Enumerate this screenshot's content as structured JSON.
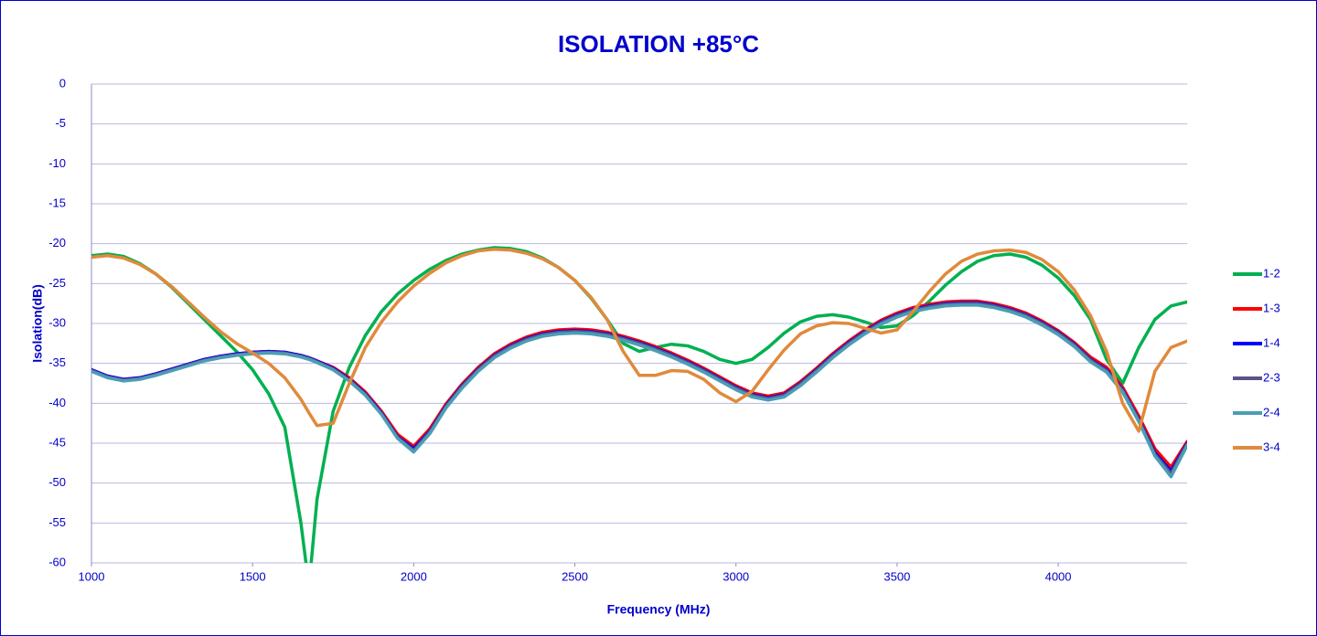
{
  "chart_data": {
    "type": "line",
    "title": "ISOLATION +85°C",
    "x_label": "Frequency (MHz)",
    "y_label": "Isolation(dB)",
    "x": [
      1000,
      1050,
      1100,
      1150,
      1200,
      1250,
      1300,
      1350,
      1400,
      1450,
      1500,
      1550,
      1600,
      1650,
      1675,
      1700,
      1750,
      1800,
      1850,
      1900,
      1950,
      2000,
      2050,
      2100,
      2150,
      2200,
      2250,
      2300,
      2350,
      2400,
      2450,
      2500,
      2550,
      2600,
      2650,
      2700,
      2750,
      2800,
      2850,
      2900,
      2950,
      3000,
      3050,
      3100,
      3150,
      3200,
      3250,
      3300,
      3350,
      3400,
      3450,
      3500,
      3550,
      3600,
      3650,
      3700,
      3750,
      3800,
      3850,
      3900,
      3950,
      4000,
      4050,
      4100,
      4150,
      4200,
      4250,
      4300,
      4350,
      4400
    ],
    "xlim": [
      1000,
      4400
    ],
    "xticks": [
      1000,
      1500,
      2000,
      2500,
      3000,
      3500,
      4000
    ],
    "ylim": [
      -60,
      0
    ],
    "yticks": [
      0,
      -5,
      -10,
      -15,
      -20,
      -25,
      -30,
      -35,
      -40,
      -45,
      -50,
      -55,
      -60
    ],
    "grid": true,
    "legend": "right",
    "series": [
      {
        "name": "1-2",
        "color": "#00b050",
        "values": [
          -21.5,
          -21.3,
          -21.6,
          -22.5,
          -23.8,
          -25.5,
          -27.5,
          -29.5,
          -31.5,
          -33.5,
          -35.8,
          -38.8,
          -43,
          -55,
          -63,
          -52,
          -41,
          -35.5,
          -31.5,
          -28.5,
          -26.3,
          -24.6,
          -23.2,
          -22.1,
          -21.3,
          -20.8,
          -20.5,
          -20.6,
          -21.0,
          -21.8,
          -23,
          -24.6,
          -26.8,
          -29.5,
          -32.5,
          -33.5,
          -33,
          -32.6,
          -32.8,
          -33.5,
          -34.5,
          -35,
          -34.5,
          -33,
          -31.2,
          -29.8,
          -29.1,
          -28.9,
          -29.2,
          -29.8,
          -30.5,
          -30.3,
          -29,
          -27.2,
          -25.2,
          -23.5,
          -22.2,
          -21.5,
          -21.3,
          -21.7,
          -22.7,
          -24.3,
          -26.5,
          -29.5,
          -34.5,
          -37.5,
          -33,
          -29.5,
          -27.8,
          -27.3
        ]
      },
      {
        "name": "1-3",
        "color": "#ff0000",
        "values": [
          -35.8,
          -36.6,
          -37,
          -36.8,
          -36.3,
          -35.7,
          -35.1,
          -34.5,
          -34.1,
          -33.8,
          -33.6,
          -33.5,
          -33.6,
          -34,
          -34.3,
          -34.7,
          -35.5,
          -36.8,
          -38.6,
          -41,
          -43.9,
          -45.4,
          -43.2,
          -40.1,
          -37.6,
          -35.5,
          -33.8,
          -32.6,
          -31.7,
          -31.1,
          -30.8,
          -30.7,
          -30.8,
          -31.1,
          -31.6,
          -32.2,
          -32.9,
          -33.7,
          -34.6,
          -35.6,
          -36.7,
          -37.8,
          -38.7,
          -39.1,
          -38.7,
          -37.3,
          -35.6,
          -33.8,
          -32.2,
          -30.8,
          -29.6,
          -28.7,
          -28.0,
          -27.6,
          -27.3,
          -27.2,
          -27.2,
          -27.5,
          -28.0,
          -28.7,
          -29.7,
          -30.9,
          -32.4,
          -34.2,
          -35.5,
          -38,
          -41.6,
          -45.7,
          -48,
          -44.8
        ]
      },
      {
        "name": "1-4",
        "color": "#0000ff",
        "values": [
          -35.8,
          -36.6,
          -37,
          -36.8,
          -36.3,
          -35.7,
          -35.1,
          -34.5,
          -34.1,
          -33.8,
          -33.6,
          -33.5,
          -33.6,
          -34,
          -34.3,
          -34.7,
          -35.6,
          -37,
          -38.8,
          -41.2,
          -44.2,
          -45.7,
          -43.5,
          -40.3,
          -37.8,
          -35.7,
          -34,
          -32.8,
          -31.9,
          -31.3,
          -31,
          -30.9,
          -31,
          -31.3,
          -31.8,
          -32.4,
          -33.1,
          -33.9,
          -34.8,
          -35.8,
          -36.9,
          -38,
          -38.9,
          -39.3,
          -38.9,
          -37.5,
          -35.8,
          -34,
          -32.4,
          -31,
          -29.8,
          -28.9,
          -28.2,
          -27.8,
          -27.5,
          -27.4,
          -27.4,
          -27.7,
          -28.2,
          -28.9,
          -29.9,
          -31.1,
          -32.6,
          -34.5,
          -35.8,
          -38.3,
          -42,
          -46.2,
          -48.5,
          -45
        ]
      },
      {
        "name": "2-3",
        "color": "#5b5388",
        "values": [
          -35.9,
          -36.7,
          -37.1,
          -36.9,
          -36.4,
          -35.8,
          -35.2,
          -34.6,
          -34.2,
          -33.9,
          -33.7,
          -33.6,
          -33.7,
          -34.1,
          -34.4,
          -34.8,
          -35.7,
          -37.1,
          -38.9,
          -41.3,
          -44.3,
          -45.9,
          -43.6,
          -40.4,
          -37.9,
          -35.8,
          -34.1,
          -32.9,
          -32.0,
          -31.4,
          -31.1,
          -31.0,
          -31.1,
          -31.4,
          -31.9,
          -32.5,
          -33.2,
          -34.0,
          -34.9,
          -35.9,
          -37.0,
          -38.1,
          -39.0,
          -39.4,
          -39.0,
          -37.6,
          -35.9,
          -34.1,
          -32.5,
          -31.1,
          -29.9,
          -29.0,
          -28.3,
          -27.9,
          -27.6,
          -27.5,
          -27.5,
          -27.8,
          -28.3,
          -29.0,
          -30.0,
          -31.2,
          -32.7,
          -34.6,
          -35.9,
          -38.4,
          -42.1,
          -46.4,
          -48.8,
          -45.1
        ]
      },
      {
        "name": "2-4",
        "color": "#4a9eb5",
        "values": [
          -36,
          -36.8,
          -37.2,
          -37,
          -36.5,
          -35.9,
          -35.3,
          -34.7,
          -34.3,
          -34,
          -33.8,
          -33.7,
          -33.8,
          -34.2,
          -34.5,
          -34.9,
          -35.8,
          -37.2,
          -39,
          -41.4,
          -44.4,
          -46.1,
          -43.8,
          -40.6,
          -38.1,
          -36,
          -34.3,
          -33.1,
          -32.2,
          -31.6,
          -31.3,
          -31.2,
          -31.3,
          -31.6,
          -32.1,
          -32.7,
          -33.4,
          -34.2,
          -35.1,
          -36.1,
          -37.2,
          -38.3,
          -39.2,
          -39.6,
          -39.2,
          -37.8,
          -36.1,
          -34.3,
          -32.7,
          -31.3,
          -30.1,
          -29.2,
          -28.5,
          -28.1,
          -27.8,
          -27.7,
          -27.7,
          -28.0,
          -28.5,
          -29.2,
          -30.2,
          -31.4,
          -32.9,
          -34.8,
          -36.1,
          -38.6,
          -42.3,
          -46.6,
          -49.2,
          -45.3
        ]
      },
      {
        "name": "3-4",
        "color": "#e08a3c",
        "values": [
          -21.7,
          -21.5,
          -21.8,
          -22.6,
          -23.8,
          -25.4,
          -27.3,
          -29.2,
          -31,
          -32.5,
          -33.7,
          -35,
          -36.8,
          -39.5,
          -41.2,
          -42.8,
          -42.5,
          -37.5,
          -33,
          -29.8,
          -27.3,
          -25.3,
          -23.7,
          -22.4,
          -21.5,
          -20.9,
          -20.7,
          -20.8,
          -21.2,
          -21.9,
          -23,
          -24.6,
          -26.7,
          -29.5,
          -33.5,
          -36.5,
          -36.5,
          -35.9,
          -36,
          -37,
          -38.7,
          -39.8,
          -38.5,
          -35.8,
          -33.3,
          -31.3,
          -30.3,
          -29.9,
          -30,
          -30.6,
          -31.2,
          -30.8,
          -28.5,
          -26,
          -23.8,
          -22.2,
          -21.3,
          -20.9,
          -20.8,
          -21.1,
          -22,
          -23.5,
          -25.8,
          -29,
          -33.5,
          -40,
          -43.5,
          -36,
          -33,
          -32.2
        ]
      }
    ]
  }
}
